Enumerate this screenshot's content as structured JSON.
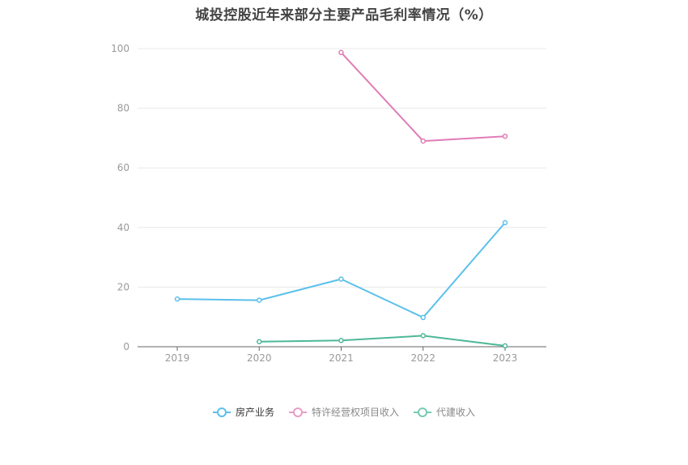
{
  "chart_data": {
    "type": "line",
    "title": "城投控股近年来部分主要产品毛利率情况（%）",
    "categories": [
      "2019",
      "2020",
      "2021",
      "2022",
      "2023"
    ],
    "ylim": [
      0,
      100
    ],
    "yticks": [
      0,
      20,
      40,
      60,
      80,
      100
    ],
    "grid": true,
    "legend_position": "bottom",
    "series": [
      {
        "name": "房产业务",
        "color": "#5bc0eb",
        "values": [
          16.0,
          15.6,
          22.7,
          9.8,
          41.6
        ]
      },
      {
        "name": "特许经营权项目收入",
        "color": "#e07cb8",
        "values": [
          null,
          null,
          98.7,
          69.0,
          70.6
        ]
      },
      {
        "name": "代建收入",
        "color": "#4db898",
        "values": [
          null,
          1.7,
          2.1,
          3.7,
          0.3
        ]
      }
    ]
  }
}
